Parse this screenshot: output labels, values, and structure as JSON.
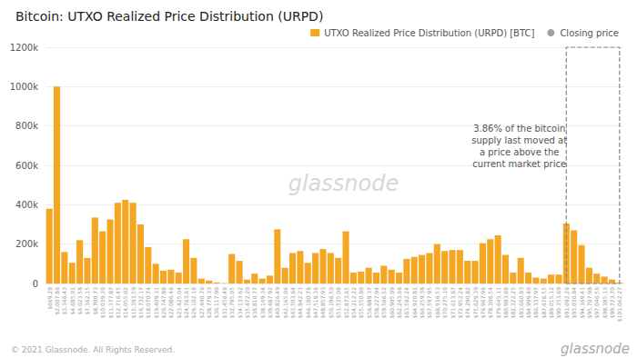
{
  "chart_data": {
    "type": "bar",
    "title": "Bitcoin: UTXO Realized Price Distribution (URPD)",
    "annotation": "3.86% of the bitcoin\nsupply last moved at\na price above the\ncurrent market price",
    "watermark": "glassnode",
    "footer": "© 2021 Glassnode. All Rights Reserved.",
    "logo": "glassnode",
    "categories": [
      "$669.28",
      "$2,007.86",
      "$3,346.43",
      "$4,685.01",
      "$6,023.58",
      "$7,362.15",
      "$8,700.73",
      "$10,039.30",
      "$11,377.87",
      "$12,716.45",
      "$14,055.02",
      "$15,393.59",
      "$16,732.17",
      "$18,070.74",
      "$19,409.31",
      "$20,747.88",
      "$22,086.46",
      "$23,425.04",
      "$24,763.61",
      "$26,102.18",
      "$27,440.76",
      "$28,779.33",
      "$30,117.90",
      "$31,456.48",
      "$32,795.05",
      "$34,133.62",
      "$35,472.20",
      "$36,810.77",
      "$38,149.34",
      "$39,487.92",
      "$40,826.49",
      "$42,165.06",
      "$43,503.64",
      "$44,842.21",
      "$46,180.78",
      "$47,519.36",
      "$48,857.93",
      "$50,196.50",
      "$51,535.08",
      "$52,873.65",
      "$54,212.22",
      "$55,550.80",
      "$56,889.37",
      "$58,227.94",
      "$59,566.52",
      "$60,905.09",
      "$62,243.66",
      "$63,582.24",
      "$64,920.81",
      "$66,259.38",
      "$67,597.95",
      "$68,936.53",
      "$70,275.10",
      "$71,613.67",
      "$72,952.24",
      "$74,290.82",
      "$75,629.39",
      "$76,967.96",
      "$78,306.54",
      "$79,645.11",
      "$80,983.68",
      "$82,322.25",
      "$83,660.83",
      "$84,999.40",
      "$86,337.97",
      "$87,676.55",
      "$89,015.12",
      "$90,353.69",
      "$91,692.26",
      "$93,030.84",
      "$94,369.41",
      "$95,707.98",
      "$97,046.56",
      "$98,385.13",
      "$99,723.70",
      "$101,062.27"
    ],
    "series": [
      {
        "name": "UTXO Realized Price Distribution (URPD) [BTC]",
        "type": "bar",
        "color": "#f5a623",
        "values": [
          380000,
          1000000,
          160000,
          105000,
          220000,
          130000,
          335000,
          265000,
          325000,
          410000,
          425000,
          410000,
          300000,
          185000,
          100000,
          65000,
          70000,
          55000,
          225000,
          130000,
          25000,
          15000,
          5000,
          2000,
          150000,
          115000,
          20000,
          50000,
          25000,
          40000,
          275000,
          80000,
          155000,
          165000,
          105000,
          155000,
          175000,
          155000,
          130000,
          265000,
          55000,
          60000,
          80000,
          55000,
          90000,
          70000,
          55000,
          125000,
          135000,
          145000,
          155000,
          200000,
          165000,
          170000,
          170000,
          115000,
          115000,
          205000,
          225000,
          245000,
          145000,
          55000,
          130000,
          55000,
          30000,
          25000,
          45000,
          45000,
          305000,
          270000,
          195000,
          80000,
          50000,
          35000,
          20000,
          5000
        ]
      },
      {
        "name": "Closing price",
        "type": "scatter",
        "marker": "circle",
        "color": "#888888",
        "values": [
          null,
          null,
          null,
          null,
          null,
          null,
          null,
          null,
          null,
          null,
          null,
          null,
          null,
          null,
          null,
          null,
          null,
          null,
          null,
          null,
          null,
          null,
          null,
          null,
          null,
          null,
          null,
          null,
          null,
          null,
          null,
          null,
          null,
          null,
          null,
          null,
          null,
          null,
          null,
          null,
          null,
          null,
          null,
          null,
          null,
          null,
          null,
          null,
          null,
          null,
          null,
          null,
          null,
          null,
          null,
          null,
          null,
          null,
          null,
          null,
          null,
          null,
          null,
          null,
          null,
          null,
          null,
          null,
          null,
          null,
          null,
          null,
          null,
          null,
          null,
          null
        ]
      }
    ],
    "highlight": "$91,692.26",
    "highlight_color": "#888888",
    "ylim": [
      0,
      1200000
    ],
    "yticks": [
      0,
      {
        "value": 200000,
        "label": "200k"
      },
      {
        "value": 400000,
        "label": "400k"
      },
      {
        "value": 600000,
        "label": "600k"
      },
      {
        "value": 800000,
        "label": "800k"
      },
      {
        "value": 1000000,
        "label": "1000k"
      },
      {
        "value": 1200000,
        "label": "1200k"
      }
    ],
    "grid": true,
    "legend": "upper right"
  }
}
